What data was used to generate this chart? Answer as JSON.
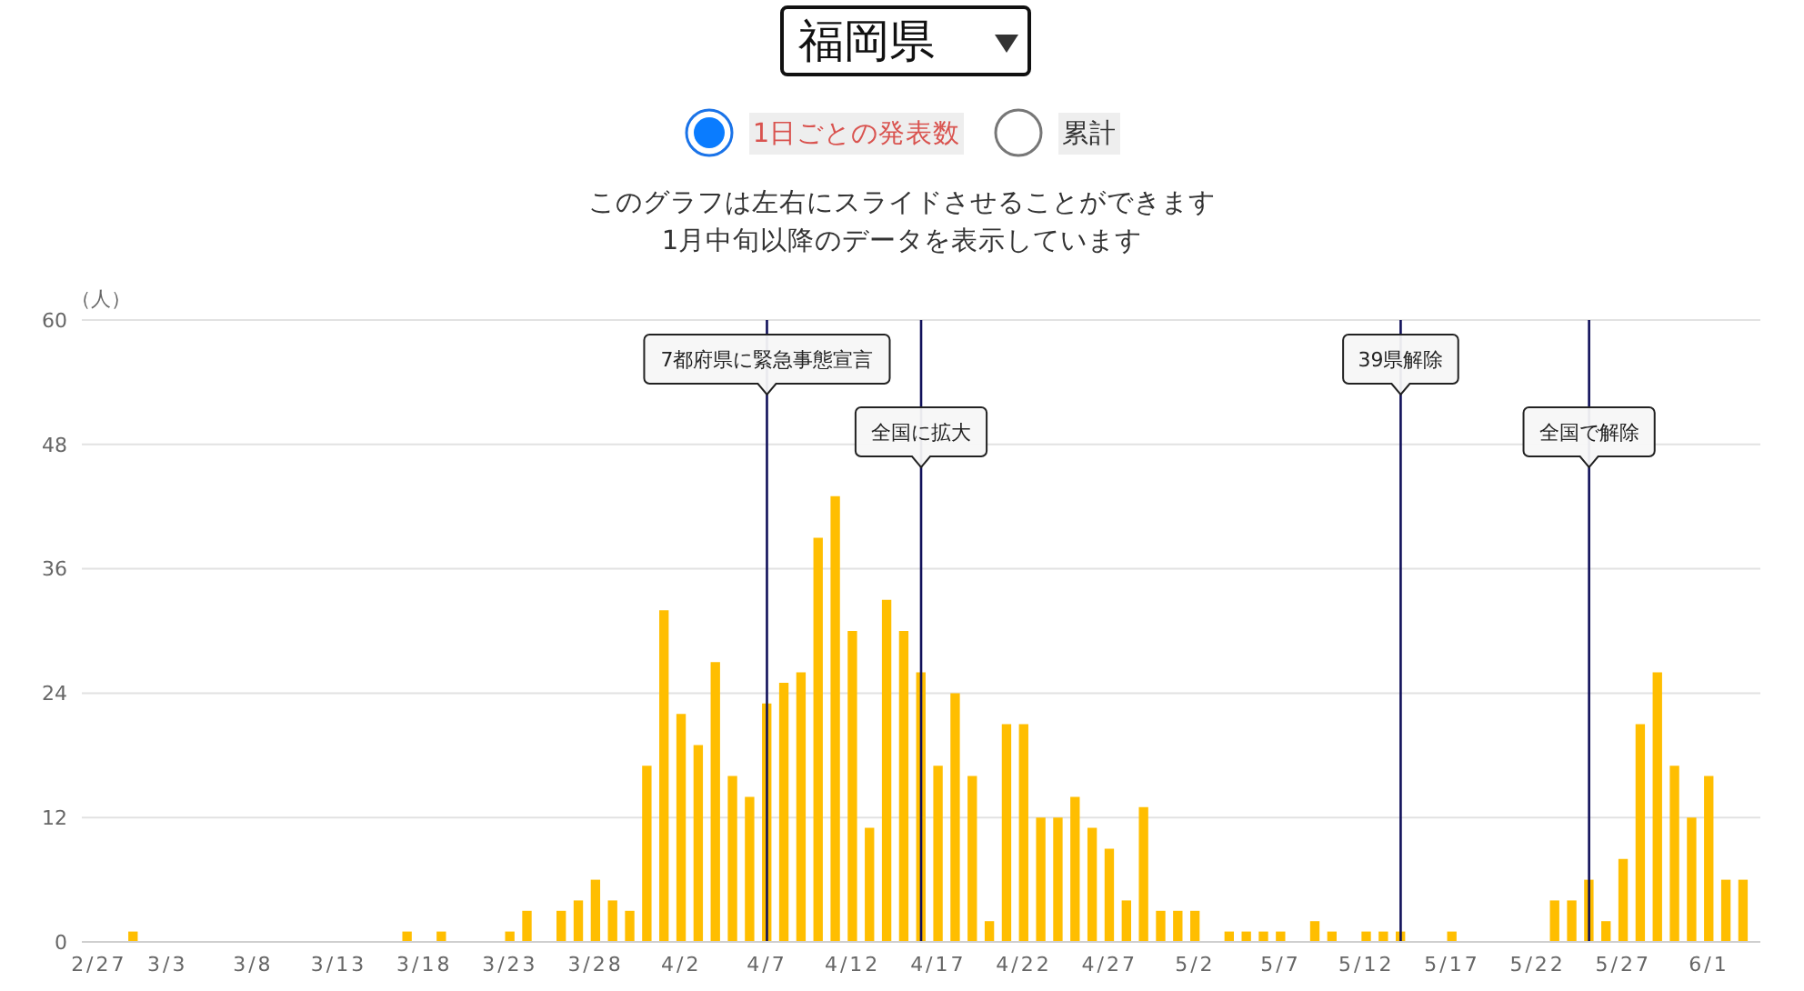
{
  "chart_data": {
    "type": "bar",
    "title": "福岡県",
    "annotations": [
      "1日ごとの発表数",
      "累計",
      "このグラフは左右にスライドさせることができます",
      "1月中旬以降のデータを表示しています"
    ],
    "ylabel": "（人）",
    "x": [
      "--03-01",
      "--03-02",
      "--03-03",
      "--03-04",
      "--03-05",
      "--03-06",
      "--03-07",
      "--03-08",
      "--03-09",
      "--03-10",
      "--03-11",
      "--03-12",
      "--03-13",
      "--03-14",
      "--03-15",
      "--03-16",
      "--03-17",
      "--03-18",
      "--03-19",
      "--03-20",
      "--03-21",
      "--03-22",
      "--03-23",
      "--03-24",
      "--03-25",
      "--03-26",
      "--03-27",
      "--03-28",
      "--03-29",
      "--03-30",
      "--03-31",
      "--04-01",
      "--04-02",
      "--04-03",
      "--04-04",
      "--04-05",
      "--04-06",
      "--04-07",
      "--04-08",
      "--04-09",
      "--04-10",
      "--04-11",
      "--04-12",
      "--04-13",
      "--04-14",
      "--04-15",
      "--04-16",
      "--04-17",
      "--04-18",
      "--04-19",
      "--04-20",
      "--04-21",
      "--04-22",
      "--04-23",
      "--04-24",
      "--04-25",
      "--04-26",
      "--04-27",
      "--04-28",
      "--04-29",
      "--04-30",
      "--05-01",
      "--05-02",
      "--05-03",
      "--05-04",
      "--05-05",
      "--05-06",
      "--05-07",
      "--05-08",
      "--05-09",
      "--05-10",
      "--05-11",
      "--05-12",
      "--05-13",
      "--05-14",
      "--05-15",
      "--05-16",
      "--05-17",
      "--05-18",
      "--05-19",
      "--05-20",
      "--05-21",
      "--05-22",
      "--05-23",
      "--05-24",
      "--05-25",
      "--05-26",
      "--05-27",
      "--05-28",
      "--05-29",
      "--05-30",
      "--05-31",
      "--06-01",
      "--06-02",
      "--06-03"
    ],
    "values": [
      1,
      0,
      0,
      0,
      0,
      0,
      0,
      0,
      0,
      0,
      0,
      0,
      0,
      0,
      0,
      0,
      1,
      0,
      1,
      0,
      0,
      0,
      1,
      3,
      0,
      3,
      4,
      6,
      4,
      3,
      17,
      32,
      22,
      19,
      27,
      16,
      14,
      23,
      25,
      26,
      39,
      43,
      30,
      11,
      33,
      30,
      26,
      17,
      24,
      16,
      2,
      21,
      21,
      12,
      12,
      14,
      11,
      9,
      4,
      13,
      3,
      3,
      3,
      0,
      1,
      1,
      1,
      1,
      0,
      2,
      1,
      0,
      1,
      1,
      1,
      0,
      0,
      1,
      0,
      0,
      0,
      0,
      0,
      4,
      4,
      6,
      2,
      8,
      21,
      26,
      17,
      12,
      16,
      6,
      6
    ],
    "color": "#ffbe00",
    "xlim": [
      "--02-26",
      "--06-04"
    ],
    "xticks": [
      {
        "value": "--02-27",
        "label": "2/27"
      },
      {
        "value": "--03-03",
        "label": "3/3"
      },
      {
        "value": "--03-08",
        "label": "3/8"
      },
      {
        "value": "--03-13",
        "label": "3/13"
      },
      {
        "value": "--03-18",
        "label": "3/18"
      },
      {
        "value": "--03-23",
        "label": "3/23"
      },
      {
        "value": "--03-28",
        "label": "3/28"
      },
      {
        "value": "--04-02",
        "label": "4/2"
      },
      {
        "value": "--04-07",
        "label": "4/7"
      },
      {
        "value": "--04-12",
        "label": "4/12"
      },
      {
        "value": "--04-17",
        "label": "4/17"
      },
      {
        "value": "--04-22",
        "label": "4/22"
      },
      {
        "value": "--04-27",
        "label": "4/27"
      },
      {
        "value": "--05-02",
        "label": "5/2"
      },
      {
        "value": "--05-07",
        "label": "5/7"
      },
      {
        "value": "--05-12",
        "label": "5/12"
      },
      {
        "value": "--05-17",
        "label": "5/17"
      },
      {
        "value": "--05-22",
        "label": "5/22"
      },
      {
        "value": "--05-27",
        "label": "5/27"
      },
      {
        "value": "--06-01",
        "label": "6/1"
      }
    ],
    "ylim": [
      0,
      60
    ],
    "yticks": [
      0,
      12,
      24,
      36,
      48,
      60
    ],
    "grid": "y",
    "ref_lines": [
      {
        "axis": "x",
        "value": "--04-07",
        "label": "7都府県に緊急事態宣言",
        "color": "#10105a"
      },
      {
        "axis": "x",
        "value": "--04-16",
        "label": "全国に拡大",
        "color": "#10105a"
      },
      {
        "axis": "x",
        "value": "--05-14",
        "label": "39県解除",
        "color": "#10105a"
      },
      {
        "axis": "x",
        "value": "--05-25",
        "label": "全国で解除",
        "color": "#10105a"
      }
    ]
  }
}
